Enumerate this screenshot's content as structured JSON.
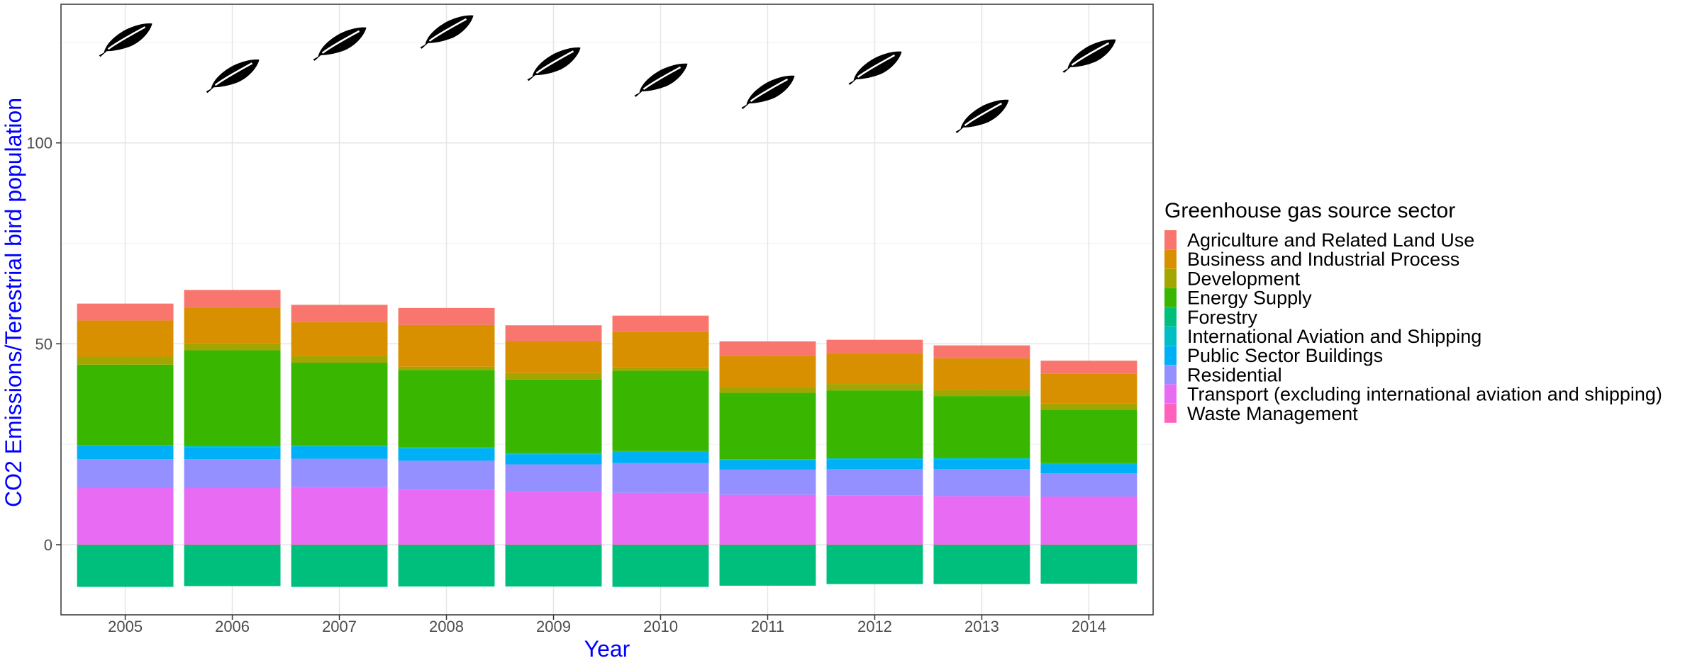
{
  "chart_data": {
    "type": "bar",
    "stacked": true,
    "title": "",
    "xlabel": "Year",
    "ylabel": "CO2 Emissions/Terestrial bird population",
    "categories": [
      "2005",
      "2006",
      "2007",
      "2008",
      "2009",
      "2010",
      "2011",
      "2012",
      "2013",
      "2014"
    ],
    "yticks": [
      0,
      50,
      100
    ],
    "ylim": [
      -17,
      135
    ],
    "grid": true,
    "axis_color": "#0000ff",
    "legend": {
      "title": "Greenhouse gas source sector",
      "position": "right"
    },
    "negative_series": {
      "name": "Forestry",
      "color": "#00BF7D",
      "values": [
        -10.5,
        -10.3,
        -10.5,
        -10.4,
        -10.4,
        -10.5,
        -10.2,
        -9.8,
        -9.8,
        -9.7
      ]
    },
    "series": [
      {
        "name": "Agriculture and Related Land Use",
        "color": "#F8766D",
        "values": [
          4.2,
          4.3,
          4.3,
          4.2,
          4.0,
          4.0,
          3.6,
          3.3,
          3.2,
          3.3
        ]
      },
      {
        "name": "Business and Industrial Process",
        "color": "#D89000",
        "values": [
          9.0,
          9.0,
          8.4,
          10.4,
          7.9,
          8.8,
          7.7,
          7.7,
          7.9,
          7.3
        ]
      },
      {
        "name": "Development",
        "color": "#A3A500",
        "values": [
          2.0,
          1.7,
          1.7,
          0.8,
          1.6,
          0.9,
          1.5,
          1.6,
          1.5,
          1.6
        ]
      },
      {
        "name": "Energy Supply",
        "color": "#39B600",
        "values": [
          20.0,
          23.8,
          20.6,
          19.3,
          18.3,
          20.0,
          16.5,
          16.9,
          15.4,
          13.3
        ]
      },
      {
        "name": "Forestry",
        "color": "#00BF7D",
        "values": [
          0,
          0,
          0,
          0,
          0,
          0,
          0,
          0,
          0,
          0
        ]
      },
      {
        "name": "International Aviation and Shipping",
        "color": "#00BFC4",
        "values": [
          0.3,
          0.3,
          0.3,
          0.3,
          0.3,
          0.3,
          0.3,
          0.3,
          0.3,
          0.3
        ]
      },
      {
        "name": "Public Sector Buildings",
        "color": "#00B0F6",
        "values": [
          3.2,
          3.0,
          3.0,
          3.0,
          2.5,
          2.7,
          2.3,
          2.4,
          2.5,
          2.2
        ]
      },
      {
        "name": "Residential",
        "color": "#9590FF",
        "values": [
          7.2,
          7.2,
          7.0,
          7.2,
          6.8,
          7.4,
          6.3,
          6.6,
          6.7,
          5.8
        ]
      },
      {
        "name": "Transport (excluding international aviation and shipping)",
        "color": "#E76BF3",
        "values": [
          14.0,
          14.0,
          14.3,
          13.6,
          13.1,
          12.8,
          12.3,
          12.1,
          12.0,
          11.9
        ]
      },
      {
        "name": "Waste Management",
        "color": "#FF62BC",
        "values": [
          0.1,
          0.1,
          0.1,
          0.1,
          0.1,
          0.1,
          0.1,
          0.1,
          0.1,
          0.1
        ]
      }
    ],
    "bird_population": {
      "icon": "feather-icon",
      "values": [
        126,
        117,
        125,
        128,
        120,
        116,
        113,
        119,
        107,
        122
      ]
    }
  }
}
